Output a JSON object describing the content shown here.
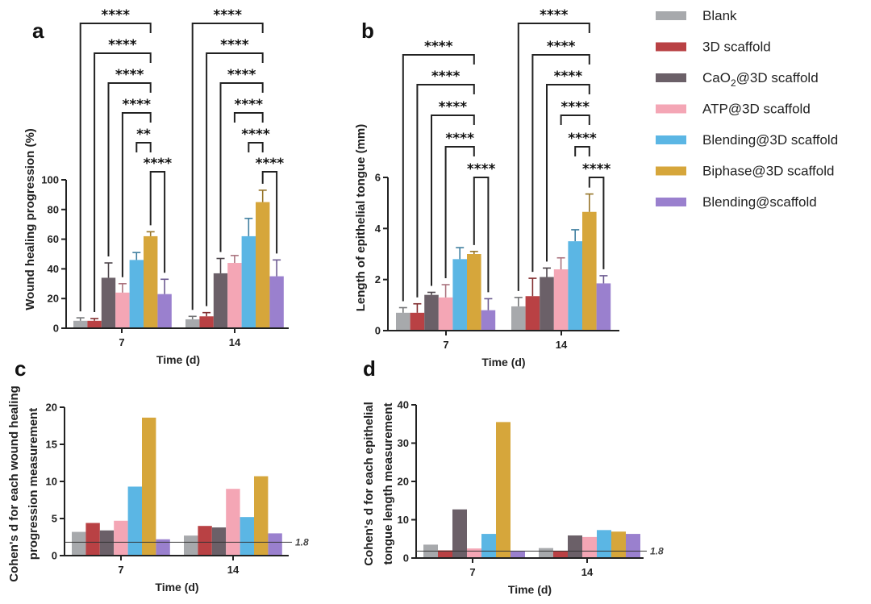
{
  "legend": {
    "items": [
      {
        "label": "Blank",
        "color": "#A7A9AC"
      },
      {
        "label": "3D scaffold",
        "color": "#B94144"
      },
      {
        "label": "CaO2@3D scaffold",
        "label_main": "CaO",
        "label_sub": "2",
        "label_rest": "@3D scaffold",
        "color": "#6B6068"
      },
      {
        "label": "ATP@3D scaffold",
        "color": "#F4A6B5"
      },
      {
        "label": "Blending@3D scaffold",
        "color": "#5BB6E4"
      },
      {
        "label": "Biphase@3D scaffold",
        "color": "#D6A63B"
      },
      {
        "label": "Blending@scaffold",
        "color": "#9A80CE"
      }
    ]
  },
  "chart_data": [
    {
      "panel": "a",
      "type": "bar",
      "title": "",
      "xlabel": "Time (d)",
      "ylabel": "Wound healing progression  (%)",
      "categories": [
        "7",
        "14"
      ],
      "ylim": [
        0,
        100
      ],
      "yticks": [
        "0",
        "20",
        "40",
        "60",
        "80",
        "100"
      ],
      "ytick_values": [
        0,
        20,
        40,
        60,
        80,
        100
      ],
      "series": [
        {
          "name": "Blank",
          "values": [
            5,
            6
          ],
          "errors": [
            2,
            2
          ]
        },
        {
          "name": "3D scaffold",
          "values": [
            5,
            8
          ],
          "errors": [
            1.5,
            2.5
          ]
        },
        {
          "name": "CaO2@3D scaffold",
          "values": [
            34,
            37
          ],
          "errors": [
            10,
            10
          ]
        },
        {
          "name": "ATP@3D scaffold",
          "values": [
            24,
            44
          ],
          "errors": [
            6,
            5
          ]
        },
        {
          "name": "Blending@3D scaffold",
          "values": [
            46,
            62
          ],
          "errors": [
            5,
            12
          ]
        },
        {
          "name": "Biphase@3D scaffold",
          "values": [
            62,
            85
          ],
          "errors": [
            3,
            8
          ]
        },
        {
          "name": "Blending@scaffold",
          "values": [
            23,
            35
          ],
          "errors": [
            10,
            11
          ]
        }
      ],
      "significance": [
        {
          "group": 0,
          "brackets": [
            {
              "from": 0,
              "to": 5,
              "label": "****"
            },
            {
              "from": 1,
              "to": 5,
              "label": "****"
            },
            {
              "from": 2,
              "to": 5,
              "label": "****"
            },
            {
              "from": 3,
              "to": 5,
              "label": "****"
            },
            {
              "from": 4,
              "to": 5,
              "label": "**"
            },
            {
              "from": 5,
              "to": 6,
              "label": "****"
            }
          ]
        },
        {
          "group": 1,
          "brackets": [
            {
              "from": 0,
              "to": 5,
              "label": "****"
            },
            {
              "from": 1,
              "to": 5,
              "label": "****"
            },
            {
              "from": 2,
              "to": 5,
              "label": "****"
            },
            {
              "from": 3,
              "to": 5,
              "label": "****"
            },
            {
              "from": 4,
              "to": 5,
              "label": "****"
            },
            {
              "from": 5,
              "to": 6,
              "label": "****"
            }
          ]
        }
      ]
    },
    {
      "panel": "b",
      "type": "bar",
      "title": "",
      "xlabel": "Time (d)",
      "ylabel": "Length of epithelial tongue (mm)",
      "categories": [
        "7",
        "14"
      ],
      "ylim": [
        0,
        6
      ],
      "yticks": [
        "0",
        "2",
        "4",
        "6"
      ],
      "ytick_values": [
        0,
        2,
        4,
        6
      ],
      "series": [
        {
          "name": "Blank",
          "values": [
            0.7,
            0.95
          ],
          "errors": [
            0.2,
            0.35
          ]
        },
        {
          "name": "3D scaffold",
          "values": [
            0.7,
            1.35
          ],
          "errors": [
            0.35,
            0.7
          ]
        },
        {
          "name": "CaO2@3D scaffold",
          "values": [
            1.4,
            2.1
          ],
          "errors": [
            0.1,
            0.35
          ]
        },
        {
          "name": "ATP@3D scaffold",
          "values": [
            1.3,
            2.4
          ],
          "errors": [
            0.5,
            0.45
          ]
        },
        {
          "name": "Blending@3D scaffold",
          "values": [
            2.8,
            3.5
          ],
          "errors": [
            0.45,
            0.45
          ]
        },
        {
          "name": "Biphase@3D scaffold",
          "values": [
            3.0,
            4.65
          ],
          "errors": [
            0.1,
            0.7
          ]
        },
        {
          "name": "Blending@scaffold",
          "values": [
            0.8,
            1.85
          ],
          "errors": [
            0.45,
            0.3
          ]
        }
      ],
      "significance": [
        {
          "group": 0,
          "brackets": [
            {
              "from": 0,
              "to": 5,
              "label": "****"
            },
            {
              "from": 1,
              "to": 5,
              "label": "****"
            },
            {
              "from": 2,
              "to": 5,
              "label": "****"
            },
            {
              "from": 3,
              "to": 5,
              "label": "****"
            },
            {
              "from": 5,
              "to": 6,
              "label": "****"
            }
          ]
        },
        {
          "group": 1,
          "brackets": [
            {
              "from": 0,
              "to": 5,
              "label": "****"
            },
            {
              "from": 1,
              "to": 5,
              "label": "****"
            },
            {
              "from": 2,
              "to": 5,
              "label": "****"
            },
            {
              "from": 3,
              "to": 5,
              "label": "****"
            },
            {
              "from": 4,
              "to": 5,
              "label": "****"
            },
            {
              "from": 5,
              "to": 6,
              "label": "****"
            }
          ]
        }
      ]
    },
    {
      "panel": "c",
      "type": "bar",
      "title": "",
      "xlabel": "Time (d)",
      "ylabel": [
        "Cohen's d for each wound healing",
        "progression measurement"
      ],
      "categories": [
        "7",
        "14"
      ],
      "ylim": [
        0,
        20
      ],
      "yticks": [
        "0",
        "5",
        "10",
        "15",
        "20"
      ],
      "ytick_values": [
        0,
        5,
        10,
        15,
        20
      ],
      "reference_line": {
        "value": 1.8,
        "label": "1.8"
      },
      "series": [
        {
          "name": "Blank",
          "values": [
            3.2,
            2.7
          ]
        },
        {
          "name": "3D scaffold",
          "values": [
            4.4,
            4.0
          ]
        },
        {
          "name": "CaO2@3D scaffold",
          "values": [
            3.4,
            3.8
          ]
        },
        {
          "name": "ATP@3D scaffold",
          "values": [
            4.7,
            9.0
          ]
        },
        {
          "name": "Blending@3D scaffold",
          "values": [
            9.3,
            5.2
          ]
        },
        {
          "name": "Biphase@3D scaffold",
          "values": [
            18.6,
            10.7
          ]
        },
        {
          "name": "Blending@scaffold",
          "values": [
            2.2,
            3.0
          ]
        }
      ]
    },
    {
      "panel": "d",
      "type": "bar",
      "title": "",
      "xlabel": "Time (d)",
      "ylabel": [
        "Cohen's d for each epithelial",
        "tongue length measurement"
      ],
      "categories": [
        "7",
        "14"
      ],
      "ylim": [
        0,
        40
      ],
      "yticks": [
        "0",
        "10",
        "20",
        "30",
        "40"
      ],
      "ytick_values": [
        0,
        10,
        20,
        30,
        40
      ],
      "reference_line": {
        "value": 1.8,
        "label": "1.8"
      },
      "series": [
        {
          "name": "Blank",
          "values": [
            3.5,
            2.6
          ]
        },
        {
          "name": "3D scaffold",
          "values": [
            2.0,
            1.9
          ]
        },
        {
          "name": "CaO2@3D scaffold",
          "values": [
            12.7,
            5.9
          ]
        },
        {
          "name": "ATP@3D scaffold",
          "values": [
            2.5,
            5.5
          ]
        },
        {
          "name": "Blending@3D scaffold",
          "values": [
            6.3,
            7.3
          ]
        },
        {
          "name": "Biphase@3D scaffold",
          "values": [
            35.5,
            6.9
          ]
        },
        {
          "name": "Blending@scaffold",
          "values": [
            1.8,
            6.3
          ]
        }
      ]
    }
  ]
}
